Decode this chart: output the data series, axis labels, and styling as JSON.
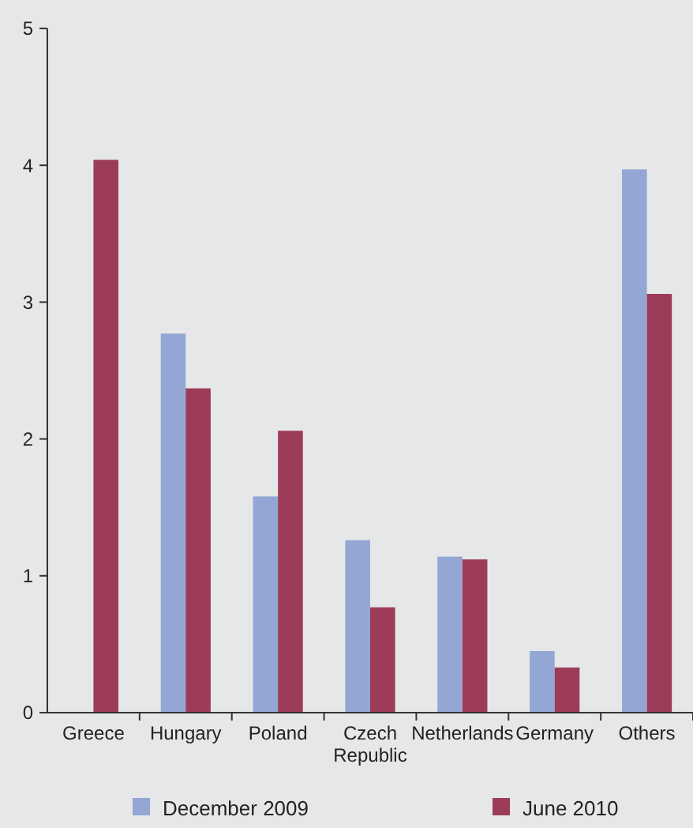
{
  "chart_data": {
    "type": "bar",
    "categories": [
      "Greece",
      "Hungary",
      "Poland",
      "Czech Republic",
      "Netherlands",
      "Germany",
      "Others"
    ],
    "series": [
      {
        "name": "December 2009",
        "color": "#93a6d4",
        "values": [
          null,
          2.77,
          1.58,
          1.26,
          1.14,
          0.45,
          3.97
        ]
      },
      {
        "name": "June 2010",
        "color": "#9c3c58",
        "values": [
          4.04,
          2.37,
          2.06,
          0.77,
          1.12,
          0.33,
          3.06
        ]
      }
    ],
    "ylim": [
      0,
      5
    ],
    "yticks": [
      0,
      1,
      2,
      3,
      4,
      5
    ],
    "grid": false,
    "legend": "bottom"
  }
}
